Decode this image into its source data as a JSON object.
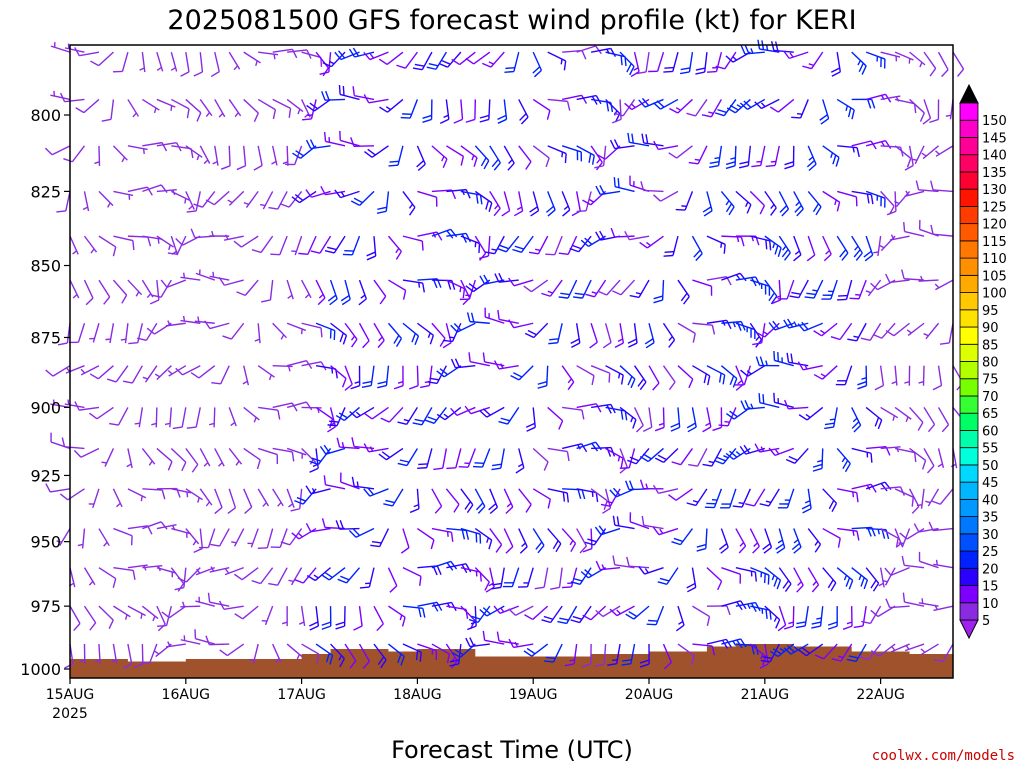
{
  "chart_data": {
    "type": "wind-barb-time-height",
    "title": "2025081500 GFS forecast wind profile (kt) for KERI",
    "xlabel": "Forecast Time (UTC)",
    "ylabel": "",
    "y_ticks": [
      800,
      825,
      850,
      875,
      900,
      925,
      950,
      975,
      1000
    ],
    "ylim": [
      775,
      1000
    ],
    "y_axis_inverted": true,
    "x_ticks": [
      {
        "label": "15AUG",
        "sub": "2025",
        "hour": 0
      },
      {
        "label": "16AUG",
        "sub": "",
        "hour": 24
      },
      {
        "label": "17AUG",
        "sub": "",
        "hour": 48
      },
      {
        "label": "18AUG",
        "sub": "",
        "hour": 72
      },
      {
        "label": "19AUG",
        "sub": "",
        "hour": 96
      },
      {
        "label": "20AUG",
        "sub": "",
        "hour": 120
      },
      {
        "label": "21AUG",
        "sub": "",
        "hour": 144
      },
      {
        "label": "22AUG",
        "sub": "",
        "hour": 168
      }
    ],
    "xlim_hours": [
      0,
      183
    ],
    "barb_levels_hpa": [
      780,
      795,
      810,
      825,
      840,
      855,
      870,
      885,
      900,
      915,
      930,
      945,
      960,
      975,
      990
    ],
    "barb_interval_hours": 3,
    "wind_speed_by_period_kt": [
      {
        "start_hour": 0,
        "end_hour": 51,
        "low_kt": 6,
        "high_kt": 9
      },
      {
        "start_hour": 51,
        "end_hour": 96,
        "low_kt": 10,
        "high_kt": 22
      },
      {
        "start_hour": 96,
        "end_hour": 135,
        "low_kt": 8,
        "high_kt": 22
      },
      {
        "start_hour": 135,
        "end_hour": 168,
        "low_kt": 12,
        "high_kt": 25
      },
      {
        "start_hour": 168,
        "end_hour": 183,
        "low_kt": 6,
        "high_kt": 10
      }
    ],
    "surface_pressure_hpa": [
      {
        "hour": 0,
        "p": 996
      },
      {
        "hour": 12,
        "p": 997
      },
      {
        "hour": 24,
        "p": 996
      },
      {
        "hour": 36,
        "p": 996
      },
      {
        "hour": 48,
        "p": 994
      },
      {
        "hour": 54,
        "p": 992
      },
      {
        "hour": 66,
        "p": 993
      },
      {
        "hour": 72,
        "p": 992
      },
      {
        "hour": 84,
        "p": 995
      },
      {
        "hour": 96,
        "p": 995
      },
      {
        "hour": 108,
        "p": 994
      },
      {
        "hour": 120,
        "p": 993
      },
      {
        "hour": 132,
        "p": 991
      },
      {
        "hour": 138,
        "p": 990
      },
      {
        "hour": 150,
        "p": 991
      },
      {
        "hour": 162,
        "p": 993
      },
      {
        "hour": 174,
        "p": 994
      },
      {
        "hour": 183,
        "p": 994
      }
    ],
    "colorbar": {
      "ticks": [
        5,
        10,
        15,
        20,
        25,
        30,
        35,
        40,
        45,
        50,
        55,
        60,
        65,
        70,
        75,
        80,
        85,
        90,
        95,
        100,
        105,
        110,
        115,
        120,
        125,
        130,
        135,
        140,
        145,
        150
      ],
      "colors": [
        "#8a2be2",
        "#7d00ff",
        "#2b00ff",
        "#0022ff",
        "#0050ff",
        "#0077ff",
        "#0099ff",
        "#00b7ff",
        "#00d8ff",
        "#00ffdd",
        "#00ffaa",
        "#00ff66",
        "#33ff33",
        "#77ff00",
        "#b2ff00",
        "#ddff00",
        "#ffff00",
        "#ffe100",
        "#ffc800",
        "#ffaa00",
        "#ff9100",
        "#ff7800",
        "#ff5a00",
        "#ff3c00",
        "#ff1400",
        "#ff0032",
        "#ff0064",
        "#ff0096",
        "#ff00c8",
        "#ff00ff"
      ],
      "under_color": "#a020f0",
      "over_color": "#000000"
    },
    "terrain_color": "#a0522d",
    "credit": "coolwx.com/models"
  }
}
